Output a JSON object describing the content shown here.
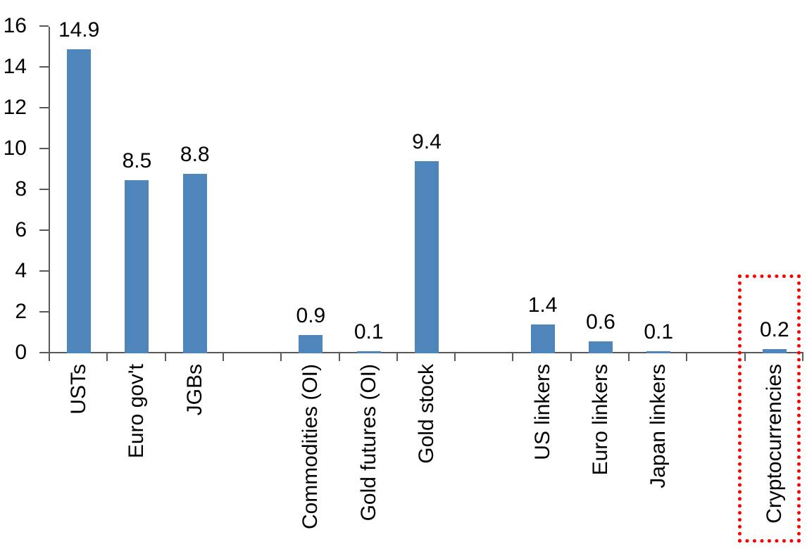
{
  "chart_data": {
    "type": "bar",
    "title": "",
    "xlabel": "",
    "ylabel": "",
    "ylim": [
      0,
      16
    ],
    "ytick_step": 2,
    "grid": false,
    "legend": false,
    "n_slots": 13,
    "bar_color": "#4E86BC",
    "axis_color": "#595959",
    "text_color": "#000000",
    "highlight_box_color": "#FF0000",
    "categories": [
      "USTs",
      "Euro gov't",
      "JGBs",
      "Commodities (OI)",
      "Gold futures (OI)",
      "Gold stock",
      "US linkers",
      "Euro linkers",
      "Japan linkers",
      "Cryptocurrencies"
    ],
    "values": [
      14.9,
      8.5,
      8.8,
      0.9,
      0.1,
      9.4,
      1.4,
      0.6,
      0.1,
      0.2
    ],
    "value_labels": [
      "14.9",
      "8.5",
      "8.8",
      "0.9",
      "0.1",
      "9.4",
      "1.4",
      "0.6",
      "0.1",
      "0.2"
    ],
    "slots": [
      0,
      1,
      2,
      4,
      5,
      6,
      8,
      9,
      10,
      12
    ],
    "highlighted_category": "Cryptocurrencies"
  }
}
